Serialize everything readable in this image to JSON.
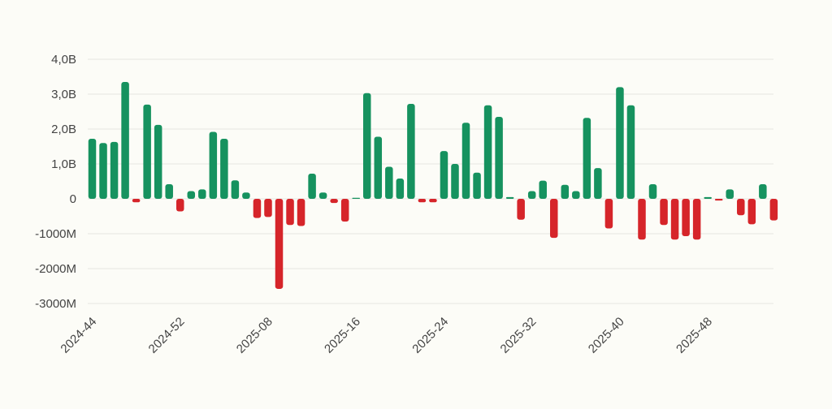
{
  "chart_data": {
    "type": "bar",
    "title": "",
    "xlabel": "",
    "ylabel": "",
    "unit": "dollars",
    "ylim": [
      -3000000000,
      4000000000
    ],
    "yticks": [
      {
        "value": 4000000000,
        "label": "4,0B"
      },
      {
        "value": 3000000000,
        "label": "3,0B"
      },
      {
        "value": 2000000000,
        "label": "2,0B"
      },
      {
        "value": 1000000000,
        "label": "1,0B"
      },
      {
        "value": 0,
        "label": "0"
      },
      {
        "value": -1000000000,
        "label": "-1000M"
      },
      {
        "value": -2000000000,
        "label": "-2000M"
      },
      {
        "value": -3000000000,
        "label": "-3000M"
      }
    ],
    "xtick_labels": [
      {
        "index": 0,
        "label": "2024-44"
      },
      {
        "index": 8,
        "label": "2024-52"
      },
      {
        "index": 16,
        "label": "2025-08"
      },
      {
        "index": 24,
        "label": "2025-16"
      },
      {
        "index": 32,
        "label": "2025-24"
      },
      {
        "index": 40,
        "label": "2025-32"
      },
      {
        "index": 48,
        "label": "2025-40"
      },
      {
        "index": 56,
        "label": "2025-48"
      }
    ],
    "colors": {
      "positive": "#16925f",
      "negative": "#d6252a",
      "grid": "#e6e6e0"
    },
    "values": [
      1.72,
      1.6,
      1.63,
      3.35,
      -0.1,
      2.7,
      2.12,
      0.42,
      -0.36,
      0.22,
      0.27,
      1.92,
      1.72,
      0.53,
      0.18,
      -0.55,
      -0.52,
      -2.58,
      -0.75,
      -0.78,
      0.72,
      0.18,
      -0.12,
      -0.65,
      0.02,
      3.03,
      1.78,
      0.92,
      0.58,
      2.72,
      -0.1,
      -0.1,
      1.37,
      1.0,
      2.18,
      0.75,
      2.68,
      2.35,
      0.05,
      -0.6,
      0.22,
      0.52,
      -1.12,
      0.4,
      0.22,
      2.32,
      0.88,
      -0.85,
      3.2,
      2.68,
      -1.17,
      0.42,
      -0.75,
      -1.17,
      -1.07,
      -1.17,
      0.05,
      -0.05,
      0.27,
      -0.47,
      -0.73,
      0.42,
      -0.62
    ],
    "value_scale": 1000000000
  }
}
